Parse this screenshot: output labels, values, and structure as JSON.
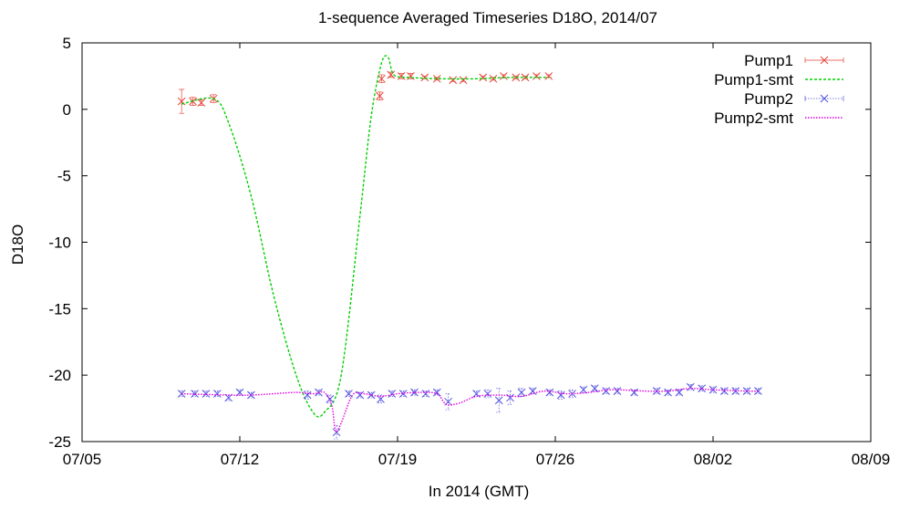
{
  "chart_data": {
    "type": "line",
    "title": "1-sequence Averaged Timeseries D18O, 2014/07",
    "xlabel": "In 2014 (GMT)",
    "ylabel": "D18O",
    "xlim": [
      "2014-07-05",
      "2014-08-09"
    ],
    "ylim": [
      -25,
      5
    ],
    "x_ticks": [
      "07/05",
      "07/12",
      "07/19",
      "07/26",
      "08/02",
      "08/09"
    ],
    "x_tick_dates": [
      "2014-07-05",
      "2014-07-12",
      "2014-07-19",
      "2014-07-26",
      "2014-08-02",
      "2014-08-09"
    ],
    "y_ticks": [
      5,
      0,
      -5,
      -10,
      -15,
      -20,
      -25
    ],
    "legend_position": "top-right",
    "grid": false,
    "series": [
      {
        "name": "Pump1",
        "style": "points-errorbars",
        "color": "#e8433a",
        "x": [
          "2014-07-09 10:00",
          "2014-07-09 22:00",
          "2014-07-10 07:00",
          "2014-07-10 20:00",
          "2014-07-18 05:00",
          "2014-07-18 07:00",
          "2014-07-18 17:00",
          "2014-07-19 04:00",
          "2014-07-19 14:00",
          "2014-07-20 05:00",
          "2014-07-20 18:00",
          "2014-07-21 11:00",
          "2014-07-21 22:00",
          "2014-07-22 19:00",
          "2014-07-23 06:00",
          "2014-07-23 17:00",
          "2014-07-24 06:00",
          "2014-07-24 16:00",
          "2014-07-25 04:00",
          "2014-07-25 17:00"
        ],
        "y": [
          0.6,
          0.6,
          0.5,
          0.8,
          1.0,
          2.3,
          2.6,
          2.5,
          2.5,
          2.4,
          2.3,
          2.2,
          2.2,
          2.4,
          2.3,
          2.5,
          2.4,
          2.4,
          2.5,
          2.5
        ],
        "err": [
          0.9,
          0.3,
          0.2,
          0.3,
          0.3,
          0.3,
          0.2,
          0.2,
          0.2,
          0.1,
          0.1,
          0.1,
          0.1,
          0.1,
          0.1,
          0.1,
          0.1,
          0.1,
          0.1,
          0.1
        ]
      },
      {
        "name": "Pump1-smt",
        "style": "dashed-line",
        "color": "#00d000",
        "x": [
          "2014-07-09 10:00",
          "2014-07-10 20:00",
          "2014-07-11 12:00",
          "2014-07-12 12:00",
          "2014-07-13 12:00",
          "2014-07-14 12:00",
          "2014-07-15 06:00",
          "2014-07-15 18:00",
          "2014-07-16 12:00",
          "2014-07-17 08:00",
          "2014-07-17 20:00",
          "2014-07-18 07:00",
          "2014-07-18 14:00",
          "2014-07-18 20:00",
          "2014-07-19 12:00",
          "2014-07-21 00:00",
          "2014-07-22 12:00",
          "2014-07-24 00:00",
          "2014-07-25 17:00"
        ],
        "y": [
          0.4,
          0.8,
          -1.0,
          -6.5,
          -14.0,
          -20.0,
          -22.8,
          -22.8,
          -20.0,
          -8.0,
          -0.5,
          3.5,
          3.9,
          2.6,
          2.4,
          2.3,
          2.3,
          2.4,
          2.4
        ]
      },
      {
        "name": "Pump2",
        "style": "points-errorbars",
        "color": "#5050e0",
        "x": [
          "2014-07-09 10:00",
          "2014-07-10 00:00",
          "2014-07-10 12:00",
          "2014-07-11 00:00",
          "2014-07-11 12:00",
          "2014-07-12 00:00",
          "2014-07-12 12:00",
          "2014-07-15 00:00",
          "2014-07-15 12:00",
          "2014-07-16 00:00",
          "2014-07-16 07:00",
          "2014-07-16 20:00",
          "2014-07-17 08:00",
          "2014-07-17 20:00",
          "2014-07-18 06:00",
          "2014-07-18 18:00",
          "2014-07-19 06:00",
          "2014-07-19 18:00",
          "2014-07-20 06:00",
          "2014-07-20 18:00",
          "2014-07-21 06:00",
          "2014-07-22 12:00",
          "2014-07-23 00:00",
          "2014-07-23 12:00",
          "2014-07-24 00:00",
          "2014-07-24 12:00",
          "2014-07-25 00:00",
          "2014-07-25 18:00",
          "2014-07-26 06:00",
          "2014-07-26 18:00",
          "2014-07-27 06:00",
          "2014-07-27 18:00",
          "2014-07-28 06:00",
          "2014-07-28 18:00",
          "2014-07-29 12:00",
          "2014-07-30 12:00",
          "2014-07-31 00:00",
          "2014-07-31 12:00",
          "2014-08-01 00:00",
          "2014-08-01 12:00",
          "2014-08-02 00:00",
          "2014-08-02 12:00",
          "2014-08-03 00:00",
          "2014-08-03 12:00",
          "2014-08-04 00:00"
        ],
        "y": [
          -21.4,
          -21.4,
          -21.4,
          -21.4,
          -21.7,
          -21.3,
          -21.5,
          -21.5,
          -21.3,
          -21.8,
          -24.3,
          -21.4,
          -21.5,
          -21.5,
          -21.8,
          -21.4,
          -21.4,
          -21.3,
          -21.4,
          -21.3,
          -22.0,
          -21.4,
          -21.4,
          -21.9,
          -21.7,
          -21.3,
          -21.2,
          -21.3,
          -21.5,
          -21.4,
          -21.1,
          -21.0,
          -21.2,
          -21.2,
          -21.3,
          -21.2,
          -21.3,
          -21.3,
          -20.9,
          -21.0,
          -21.1,
          -21.2,
          -21.2,
          -21.2,
          -21.2
        ],
        "err": [
          0.2,
          0.2,
          0.2,
          0.2,
          0.2,
          0.2,
          0.2,
          0.3,
          0.2,
          0.3,
          0.5,
          0.2,
          0.2,
          0.2,
          0.3,
          0.2,
          0.2,
          0.2,
          0.2,
          0.2,
          0.6,
          0.2,
          0.3,
          0.9,
          0.5,
          0.3,
          0.2,
          0.2,
          0.3,
          0.3,
          0.2,
          0.2,
          0.2,
          0.2,
          0.2,
          0.2,
          0.2,
          0.2,
          0.2,
          0.2,
          0.2,
          0.2,
          0.2,
          0.2,
          0.2
        ]
      },
      {
        "name": "Pump2-smt",
        "style": "dotted-line",
        "color": "#e000e0",
        "x": [
          "2014-07-09 10:00",
          "2014-07-11 12:00",
          "2014-07-12 12:00",
          "2014-07-13 12:00",
          "2014-07-14 12:00",
          "2014-07-15 06:00",
          "2014-07-15 18:00",
          "2014-07-16 02:00",
          "2014-07-16 06:00",
          "2014-07-16 12:00",
          "2014-07-17 00:00",
          "2014-07-17 12:00",
          "2014-07-18 06:00",
          "2014-07-19 00:00",
          "2014-07-20 00:00",
          "2014-07-20 18:00",
          "2014-07-21 04:00",
          "2014-07-21 18:00",
          "2014-07-22 12:00",
          "2014-07-23 12:00",
          "2014-07-24 12:00",
          "2014-07-25 12:00",
          "2014-07-26 12:00",
          "2014-07-27 12:00",
          "2014-07-28 12:00",
          "2014-07-30 00:00",
          "2014-07-31 00:00",
          "2014-08-01 00:00",
          "2014-08-02 00:00",
          "2014-08-03 12:00",
          "2014-08-04 00:00"
        ],
        "y": [
          -21.4,
          -21.5,
          -21.5,
          -21.4,
          -21.3,
          -21.4,
          -21.3,
          -22.3,
          -24.2,
          -23.6,
          -21.5,
          -21.4,
          -21.6,
          -21.4,
          -21.3,
          -21.4,
          -22.2,
          -22.1,
          -21.6,
          -21.5,
          -21.6,
          -21.2,
          -21.4,
          -21.3,
          -21.1,
          -21.2,
          -21.2,
          -21.0,
          -21.1,
          -21.2,
          -21.2
        ]
      }
    ]
  }
}
